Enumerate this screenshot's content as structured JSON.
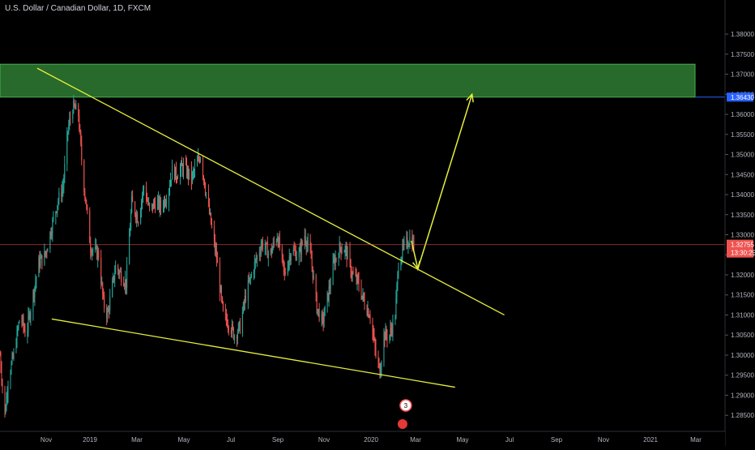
{
  "header": {
    "title": "U.S. Dollar / Canadian Dollar, 1D, FXCM"
  },
  "colors": {
    "background": "#000000",
    "up": "#26a69a",
    "down": "#ef5350",
    "trendline": "#e6ef3c",
    "zone_fill": "#2e7d32",
    "zone_border": "#4caf50",
    "current_price_badge": "#ef5350",
    "zone_price_badge": "#2962ff",
    "axis_text": "#b2b5be"
  },
  "chart_data": {
    "type": "candlestick",
    "symbol": "USDCAD",
    "timeframe": "1D",
    "x_axis": {
      "labels": [
        "Nov",
        "2019",
        "Mar",
        "May",
        "Jul",
        "Sep",
        "Nov",
        "2020",
        "Mar",
        "May",
        "Jul",
        "Sep",
        "Nov",
        "2021",
        "Mar"
      ],
      "range": [
        "2018-09-25",
        "2021-03-10"
      ]
    },
    "y_axis": {
      "ticks": [
        "1.38000",
        "1.37500",
        "1.37000",
        "1.36500",
        "1.36000",
        "1.35500",
        "1.35000",
        "1.34500",
        "1.34000",
        "1.33500",
        "1.33000",
        "1.32500",
        "1.32000",
        "1.31500",
        "1.31000",
        "1.30500",
        "1.30000",
        "1.29500",
        "1.29000",
        "1.28500"
      ],
      "range": [
        1.281,
        1.3885
      ]
    },
    "current_price": {
      "value": "1.32755",
      "countdown": "13:30:25"
    },
    "resistance_zone": {
      "top": 1.3725,
      "bottom": 1.3643,
      "price_label": "1.36430"
    },
    "price_path": [
      [
        "2018-09-25",
        1.3
      ],
      [
        "2018-10-01",
        1.285
      ],
      [
        "2018-10-05",
        1.294
      ],
      [
        "2018-10-12",
        1.3
      ],
      [
        "2018-10-20",
        1.31
      ],
      [
        "2018-10-27",
        1.305
      ],
      [
        "2018-11-05",
        1.315
      ],
      [
        "2018-11-12",
        1.323
      ],
      [
        "2018-11-20",
        1.325
      ],
      [
        "2018-11-28",
        1.332
      ],
      [
        "2018-12-05",
        1.338
      ],
      [
        "2018-12-12",
        1.342
      ],
      [
        "2018-12-18",
        1.356
      ],
      [
        "2018-12-24",
        1.362
      ],
      [
        "2018-12-31",
        1.36
      ],
      [
        "2019-01-05",
        1.346
      ],
      [
        "2019-01-15",
        1.327
      ],
      [
        "2019-01-25",
        1.325
      ],
      [
        "2019-01-31",
        1.313
      ],
      [
        "2019-02-05",
        1.31
      ],
      [
        "2019-02-15",
        1.322
      ],
      [
        "2019-02-22",
        1.32
      ],
      [
        "2019-02-28",
        1.318
      ],
      [
        "2019-03-07",
        1.338
      ],
      [
        "2019-03-15",
        1.334
      ],
      [
        "2019-03-22",
        1.342
      ],
      [
        "2019-03-29",
        1.336
      ],
      [
        "2019-04-05",
        1.338
      ],
      [
        "2019-04-12",
        1.337
      ],
      [
        "2019-04-20",
        1.34
      ],
      [
        "2019-04-26",
        1.346
      ],
      [
        "2019-05-01",
        1.345
      ],
      [
        "2019-05-10",
        1.347
      ],
      [
        "2019-05-20",
        1.344
      ],
      [
        "2019-05-31",
        1.35
      ],
      [
        "2019-06-05",
        1.343
      ],
      [
        "2019-06-12",
        1.334
      ],
      [
        "2019-06-20",
        1.324
      ],
      [
        "2019-06-28",
        1.31
      ],
      [
        "2019-07-05",
        1.308
      ],
      [
        "2019-07-12",
        1.305
      ],
      [
        "2019-07-19",
        1.307
      ],
      [
        "2019-07-26",
        1.315
      ],
      [
        "2019-08-05",
        1.322
      ],
      [
        "2019-08-15",
        1.328
      ],
      [
        "2019-08-25",
        1.325
      ],
      [
        "2019-09-03",
        1.33
      ],
      [
        "2019-09-12",
        1.32
      ],
      [
        "2019-09-20",
        1.326
      ],
      [
        "2019-09-30",
        1.325
      ],
      [
        "2019-10-07",
        1.33
      ],
      [
        "2019-10-15",
        1.324
      ],
      [
        "2019-10-22",
        1.312
      ],
      [
        "2019-10-29",
        1.308
      ],
      [
        "2019-11-05",
        1.315
      ],
      [
        "2019-11-12",
        1.323
      ],
      [
        "2019-11-20",
        1.327
      ],
      [
        "2019-11-27",
        1.326
      ],
      [
        "2019-12-05",
        1.32
      ],
      [
        "2019-12-12",
        1.318
      ],
      [
        "2019-12-20",
        1.313
      ],
      [
        "2019-12-27",
        1.31
      ],
      [
        "2020-01-03",
        1.3
      ],
      [
        "2020-01-08",
        1.296
      ],
      [
        "2020-01-13",
        1.305
      ],
      [
        "2020-01-20",
        1.305
      ],
      [
        "2020-01-27",
        1.31
      ],
      [
        "2020-01-31",
        1.323
      ],
      [
        "2020-02-07",
        1.327
      ],
      [
        "2020-02-14",
        1.329
      ],
      [
        "2020-02-19",
        1.3275
      ]
    ],
    "drawings": {
      "upper_trendline": {
        "from": [
          "2018-11-10",
          1.3715
        ],
        "to": [
          "2020-06-10",
          1.31
        ]
      },
      "lower_trendline": {
        "from": [
          "2018-11-28",
          1.309
        ],
        "to": [
          "2020-04-10",
          1.292
        ]
      },
      "projection_arrow": [
        [
          "2020-02-16",
          1.3285
        ],
        [
          "2020-02-24",
          1.3215
        ],
        [
          "2020-05-01",
          1.365
        ]
      ]
    },
    "events": [
      {
        "label": "3",
        "date": "2020-02-06"
      },
      {
        "label": "2",
        "date": "2020-02-06"
      }
    ]
  }
}
